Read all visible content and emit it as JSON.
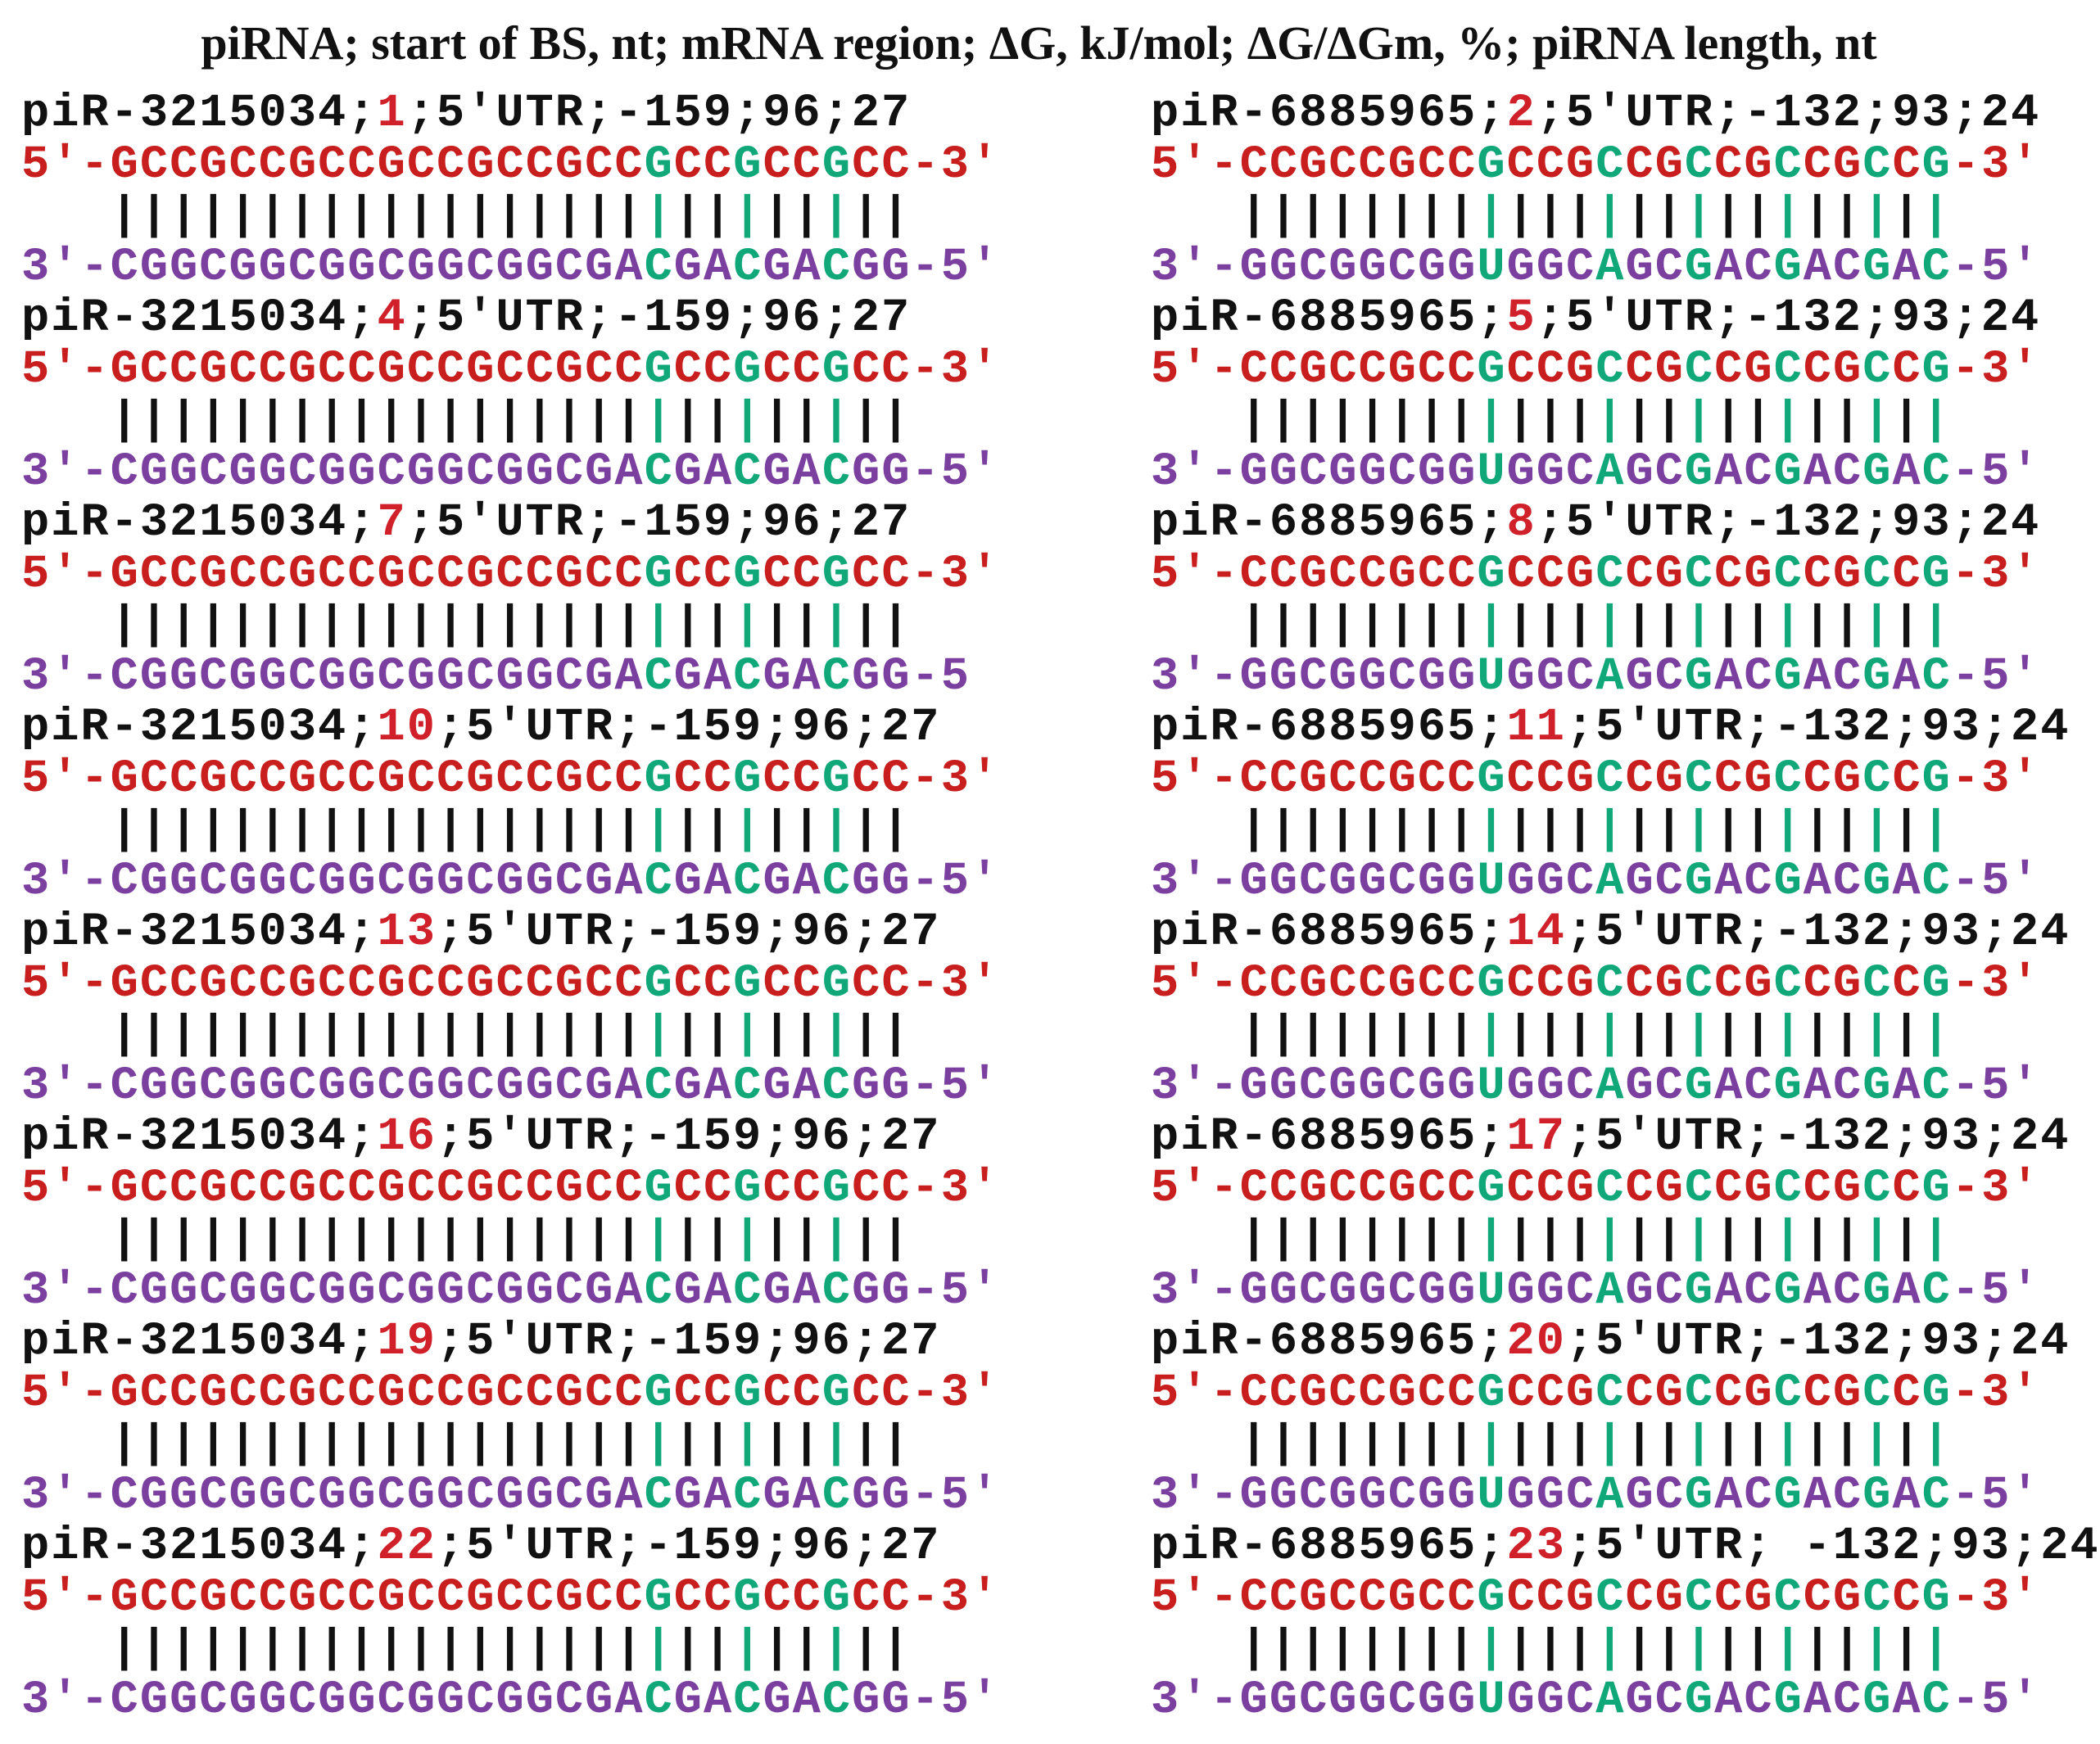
{
  "title": "piRNA; start of BS, nt; mRNA region; ΔG, kJ/mol; ΔG/ΔGm, %; piRNA length, nt",
  "colors": {
    "header": "#111111",
    "position": "#d0202a",
    "mrna": "#c81e1e",
    "pirna": "#7b3fa0",
    "match": "#111111",
    "highlight": "#10a878"
  },
  "columns": [
    {
      "mrna": {
        "prefix": "5'-",
        "seq": "GCCGCCGCCGCCGCCGCCGCCGCCGCC",
        "suffix": "-3'"
      },
      "pairs": {
        "indent": 3,
        "n": 27
      },
      "pirna": {
        "prefix": "3'-",
        "seq": "CGGCGGCGGCGGCGGCGACGACGACGG"
      },
      "highlight_pos": [
        18,
        21,
        24
      ],
      "entries": [
        {
          "name": "piR-3215034",
          "sep1": ";",
          "pos": "1",
          "rest": ";5′UTR;-159;96;27",
          "pirna_suffix": "-5'"
        },
        {
          "name": "piR-3215034",
          "sep1": ";",
          "pos": "4",
          "rest": ";5′UTR;-159;96;27",
          "pirna_suffix": "-5'"
        },
        {
          "name": "piR-3215034",
          "sep1": ";",
          "pos": "7",
          "rest": ";5′UTR;-159;96;27",
          "pirna_suffix": "-5"
        },
        {
          "name": "piR-3215034",
          "sep1": ";",
          "pos": "10",
          "rest": ";5′UTR;-159;96;27",
          "pirna_suffix": "-5'"
        },
        {
          "name": "piR-3215034",
          "sep1": ";",
          "pos": "13",
          "rest": ";5′UTR;-159;96;27",
          "pirna_suffix": "-5'"
        },
        {
          "name": "piR-3215034",
          "sep1": ";",
          "pos": "16",
          "rest": ";5′UTR;-159;96;27",
          "pirna_suffix": "-5'"
        },
        {
          "name": "piR-3215034",
          "sep1": ";",
          "pos": "19",
          "rest": ";5′UTR;-159;96;27",
          "pirna_suffix": "-5'"
        },
        {
          "name": "piR-3215034",
          "sep1": ";",
          "pos": "22",
          "rest": ";5′UTR;-159;96;27",
          "pirna_suffix": "-5'"
        }
      ]
    },
    {
      "mrna": {
        "prefix": "5'-",
        "seq": "CCGCCGCCGCCGCCGCCGCCGCCG",
        "suffix": "-3'"
      },
      "pairs": {
        "indent": 3,
        "n": 24
      },
      "pirna": {
        "prefix": "3'-",
        "seq": "GGCGGCGGUGGCAGCGACGACGAC"
      },
      "highlight_pos": [
        8,
        12,
        15,
        18,
        21,
        23
      ],
      "entries": [
        {
          "name": "piR-6885965",
          "sep1": ";",
          "pos": "2",
          "rest": ";5′UTR;-132;93;24",
          "pirna_suffix": "-5'"
        },
        {
          "name": "piR-6885965",
          "sep1": ";",
          "pos": "5",
          "rest": ";5′UTR;-132;93;24",
          "pirna_suffix": "-5'"
        },
        {
          "name": "piR-6885965",
          "sep1": ";",
          "pos": "8",
          "rest": ";5′UTR;-132;93;24",
          "pirna_suffix": "-5'"
        },
        {
          "name": "piR-6885965",
          "sep1": ";",
          "pos": "11",
          "rest": ";5′UTR;-132;93;24",
          "pirna_suffix": "-5'"
        },
        {
          "name": "piR-6885965",
          "sep1": ";",
          "pos": "14",
          "rest": ";5′UTR;-132;93;24",
          "pirna_suffix": "-5'"
        },
        {
          "name": "piR-6885965",
          "sep1": ";",
          "pos": "17",
          "rest": ";5′UTR;-132;93;24",
          "pirna_suffix": "-5'"
        },
        {
          "name": "piR-6885965",
          "sep1": ";",
          "pos": "20",
          "rest": ";5′UTR;-132;93;24",
          "pirna_suffix": "-5'"
        },
        {
          "name": "piR-6885965",
          "sep1": ";",
          "pos": "23",
          "rest": ";5′UTR; -132;93;24",
          "pirna_suffix": "-5'"
        }
      ]
    }
  ]
}
